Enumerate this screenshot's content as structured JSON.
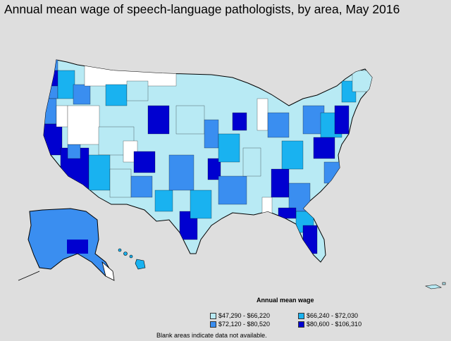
{
  "title": "Annual mean wage of speech-language pathologists, by area, May 2016",
  "legend": {
    "title": "Annual mean wage",
    "items": [
      {
        "label": "$47,290 - $66,220",
        "color": "#b8eaf4"
      },
      {
        "label": "$66,240 - $72,030",
        "color": "#19b2f0"
      },
      {
        "label": "$72,120 - $80,520",
        "color": "#3a8ef0"
      },
      {
        "label": "$80,600 - $106,310",
        "color": "#0000d0"
      }
    ]
  },
  "footnote": "Blank areas indicate data not available.",
  "colors": {
    "background": "#dedede",
    "blank": "#ffffff",
    "border": "#000000"
  }
}
